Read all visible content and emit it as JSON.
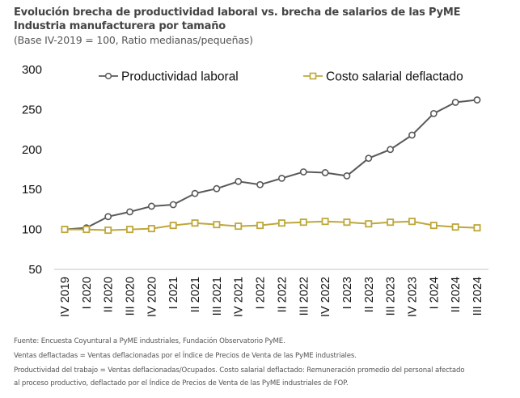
{
  "header": {
    "title": "Evolución brecha de productividad laboral vs. brecha de salarios de las PyME Industria manufacturera por tamaño",
    "subtitle": "(Base IV-2019 = 100, Ratio medianas/pequeñas)"
  },
  "footer": {
    "source": "Fuente: Encuesta Coyuntural a PyME industriales, Fundación Observatorio PyME.",
    "note1": "Ventas deflactadas = Ventas deflacionadas por el Índice de Precios de Venta de las PyME industriales.",
    "note2_line1": "Productividad del trabajo = Ventas deflacionadas/Ocupados. Costo salarial deflactado: Remuneración promedio del personal afectado",
    "note2_line2": "al proceso productivo, deflactado por el Índice de Precios de Venta de las PyME industriales de FOP."
  },
  "chart_data": {
    "type": "line",
    "title": "Evolución brecha de productividad laboral vs. brecha de salarios de las PyME Industria manufacturera por tamaño",
    "subtitle": "(Base IV-2019 = 100, Ratio medianas/pequeñas)",
    "xlabel": "",
    "ylabel": "",
    "ylim": [
      50,
      300
    ],
    "yticks": [
      50,
      100,
      150,
      200,
      250,
      300
    ],
    "grid": false,
    "legend_position": "top",
    "categories": [
      "IV 2019",
      "I 2020",
      "II 2020",
      "III 2020",
      "IV 2020",
      "I 2021",
      "II 2021",
      "III 2021",
      "IV 2021",
      "I 2022",
      "II 2022",
      "III 2022",
      "IV 2022",
      "I 2023",
      "II 2023",
      "III 2023",
      "IV 2023",
      "I 2024",
      "II 2024",
      "III 2024"
    ],
    "series": [
      {
        "name": "Productividad laboral",
        "color": "#595959",
        "marker": "circle",
        "values": [
          100,
          102,
          116,
          122,
          129,
          131,
          145,
          151,
          160,
          156,
          164,
          172,
          171,
          167,
          189,
          200,
          218,
          245,
          259,
          262
        ]
      },
      {
        "name": "Costo salarial deflactado",
        "color": "#BFA73A",
        "marker": "square",
        "values": [
          100,
          100,
          99,
          100,
          101,
          105,
          108,
          106,
          104,
          105,
          108,
          109,
          110,
          109,
          107,
          109,
          110,
          105,
          103,
          102
        ]
      }
    ]
  }
}
